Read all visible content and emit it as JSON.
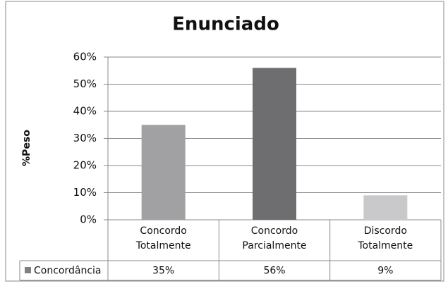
{
  "chart_data": {
    "type": "bar",
    "title": "Enunciado",
    "ylabel": "%Peso",
    "categories": [
      "Concordo Totalmente",
      "Concordo Parcialmente",
      "Discordo Totalmente"
    ],
    "series": [
      {
        "name": "Concordância",
        "colors": [
          "#a1a1a3",
          "#6e6e71",
          "#c9c9cb"
        ],
        "values": [
          35,
          56,
          9
        ],
        "value_labels": [
          "35%",
          "56%",
          "9%"
        ]
      }
    ],
    "ylim": [
      0,
      60
    ],
    "yticks": [
      {
        "value": 0,
        "label": "0%"
      },
      {
        "value": 10,
        "label": "10%"
      },
      {
        "value": 20,
        "label": "20%"
      },
      {
        "value": 30,
        "label": "30%"
      },
      {
        "value": 40,
        "label": "40%"
      },
      {
        "value": 50,
        "label": "50%"
      },
      {
        "value": 60,
        "label": "60%"
      }
    ],
    "grid": true
  }
}
